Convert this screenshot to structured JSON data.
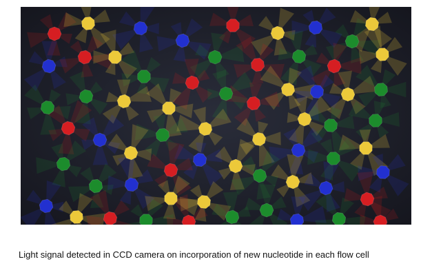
{
  "figure": {
    "caption": "Light signal detected in CCD camera on incorporation of new nucleotide in each flow cell"
  }
}
